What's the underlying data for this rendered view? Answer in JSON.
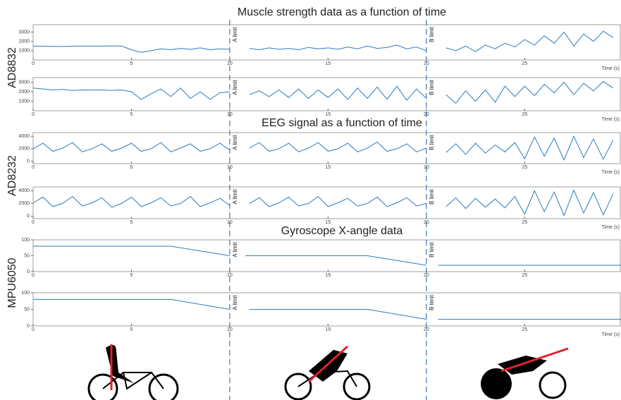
{
  "chart_data": [
    {
      "type": "line",
      "title": "Muscle strength data as a function of time",
      "ylabel": "AD8832",
      "xlabel": "Time (s)",
      "annotations": [
        "A limit",
        "B limit"
      ],
      "vlines": [
        10,
        20
      ],
      "color": "#2a7bc1",
      "xlim": [
        0,
        29.9
      ],
      "xticks": [
        0,
        5,
        10,
        15,
        20,
        25
      ],
      "ylim": [
        0,
        3800
      ],
      "yticks": [
        1000,
        2000,
        3000
      ],
      "x": [
        0,
        0.5,
        1,
        1.5,
        2,
        2.5,
        3,
        3.5,
        4,
        4.5,
        5,
        5.5,
        6,
        6.5,
        7,
        7.5,
        8,
        8.5,
        9,
        9.5,
        10,
        10.5,
        11,
        11.5,
        12,
        12.5,
        13,
        13.5,
        14,
        14.5,
        15,
        15.5,
        16,
        16.5,
        17,
        17.5,
        18,
        18.5,
        19,
        19.5,
        20,
        20.5,
        21,
        21.5,
        22,
        22.5,
        23,
        23.5,
        24,
        24.5,
        25,
        25.5,
        26,
        26.5,
        27,
        27.5,
        28,
        28.5,
        29,
        29.5
      ],
      "values": [
        1500,
        1480,
        1470,
        1450,
        1480,
        1500,
        1490,
        1500,
        1510,
        1500,
        1100,
        820,
        1000,
        1200,
        1100,
        1250,
        1150,
        1300,
        1100,
        1200,
        1150,
        null,
        1250,
        1100,
        1300,
        1150,
        1250,
        1100,
        1350,
        1200,
        1300,
        1150,
        1400,
        1200,
        1500,
        1250,
        1350,
        1600,
        1200,
        1400,
        1000,
        null,
        1300,
        1000,
        1500,
        900,
        1600,
        1200,
        1800,
        1400,
        2200,
        1600,
        2600,
        1800,
        3000,
        1500,
        2800,
        2000,
        3100,
        2400
      ]
    },
    {
      "type": "line",
      "xlabel": "Time (s)",
      "annotations": [
        "A limit",
        "B limit"
      ],
      "color": "#2a7bc1",
      "xlim": [
        0,
        29.9
      ],
      "xticks": [
        0,
        5,
        10,
        15,
        20,
        25
      ],
      "ylim": [
        0,
        3500
      ],
      "yticks": [
        1000,
        2000,
        3000
      ],
      "x": [
        0,
        0.5,
        1,
        1.5,
        2,
        2.5,
        3,
        3.5,
        4,
        4.5,
        5,
        5.5,
        6,
        6.5,
        7,
        7.5,
        8,
        8.5,
        9,
        9.5,
        10,
        10.5,
        11,
        11.5,
        12,
        12.5,
        13,
        13.5,
        14,
        14.5,
        15,
        15.5,
        16,
        16.5,
        17,
        17.5,
        18,
        18.5,
        19,
        19.5,
        20,
        20.5,
        21,
        21.5,
        22,
        22.5,
        23,
        23.5,
        24,
        24.5,
        25,
        25.5,
        26,
        26.5,
        27,
        27.5,
        28,
        28.5,
        29,
        29.5
      ],
      "values": [
        2400,
        2300,
        2200,
        2250,
        2150,
        2200,
        2180,
        2200,
        2150,
        2200,
        2000,
        1200,
        1800,
        2300,
        1500,
        2400,
        1300,
        2000,
        1200,
        1900,
        2000,
        null,
        1700,
        2100,
        1500,
        2200,
        1400,
        2300,
        1300,
        2200,
        1400,
        2300,
        1200,
        2400,
        1300,
        2500,
        1200,
        2600,
        1100,
        2300,
        1300,
        null,
        1700,
        800,
        2100,
        1000,
        2200,
        900,
        2600,
        1500,
        2600,
        1600,
        2800,
        1900,
        3000,
        1700,
        2900,
        2100,
        3100,
        2400
      ]
    },
    {
      "type": "line",
      "title": "EEG signal as a function of time",
      "ylabel": "AD8232",
      "xlabel": "Time (s)",
      "annotations": [
        "A limit",
        "B limit"
      ],
      "color": "#2a7bc1",
      "xlim": [
        0,
        29.9
      ],
      "xticks": [
        0,
        5,
        10,
        15,
        20,
        25
      ],
      "ylim": [
        -400,
        4600
      ],
      "yticks": [
        0,
        2000,
        4000
      ],
      "x": [
        0,
        0.5,
        1,
        1.5,
        2,
        2.5,
        3,
        3.5,
        4,
        4.5,
        5,
        5.5,
        6,
        6.5,
        7,
        7.5,
        8,
        8.5,
        9,
        9.5,
        10,
        10.5,
        11,
        11.5,
        12,
        12.5,
        13,
        13.5,
        14,
        14.5,
        15,
        15.5,
        16,
        16.5,
        17,
        17.5,
        18,
        18.5,
        19,
        19.5,
        20,
        20.5,
        21,
        21.5,
        22,
        22.5,
        23,
        23.5,
        24,
        24.5,
        25,
        25.5,
        26,
        26.5,
        27,
        27.5,
        28,
        28.5,
        29,
        29.5
      ],
      "values": [
        2000,
        2900,
        1600,
        2100,
        3000,
        1500,
        2000,
        2800,
        1600,
        2100,
        2900,
        1600,
        2000,
        3000,
        1500,
        2100,
        2800,
        1600,
        2000,
        2900,
        1800,
        null,
        2100,
        3000,
        1600,
        2000,
        2900,
        1500,
        2100,
        3000,
        1600,
        2000,
        2900,
        1500,
        2100,
        3100,
        1600,
        2000,
        2800,
        1500,
        2100,
        null,
        1400,
        2800,
        1100,
        2900,
        1300,
        2600,
        1500,
        3000,
        400,
        3900,
        800,
        3700,
        200,
        4000,
        600,
        3600,
        300,
        3400
      ]
    },
    {
      "type": "line",
      "xlabel": "Time (s)",
      "annotations": [
        "A limit",
        "B limit"
      ],
      "color": "#2a7bc1",
      "xlim": [
        0,
        29.9
      ],
      "xticks": [
        0,
        5,
        10,
        15,
        20,
        25
      ],
      "ylim": [
        -400,
        4600
      ],
      "yticks": [
        0,
        2000,
        4000
      ],
      "x": [
        0,
        0.5,
        1,
        1.5,
        2,
        2.5,
        3,
        3.5,
        4,
        4.5,
        5,
        5.5,
        6,
        6.5,
        7,
        7.5,
        8,
        8.5,
        9,
        9.5,
        10,
        10.5,
        11,
        11.5,
        12,
        12.5,
        13,
        13.5,
        14,
        14.5,
        15,
        15.5,
        16,
        16.5,
        17,
        17.5,
        18,
        18.5,
        19,
        19.5,
        20,
        20.5,
        21,
        21.5,
        22,
        22.5,
        23,
        23.5,
        24,
        24.5,
        25,
        25.5,
        26,
        26.5,
        27,
        27.5,
        28,
        28.5,
        29,
        29.5
      ],
      "values": [
        2100,
        3000,
        1500,
        2000,
        3100,
        1600,
        2100,
        2900,
        1400,
        2000,
        3000,
        1500,
        2100,
        2900,
        1600,
        2000,
        3100,
        1500,
        2100,
        2800,
        1700,
        null,
        2000,
        2900,
        1500,
        2100,
        3000,
        1600,
        2000,
        3100,
        1500,
        2100,
        2800,
        1600,
        2000,
        3000,
        1500,
        2100,
        2900,
        1600,
        2000,
        null,
        1500,
        2900,
        1200,
        2800,
        1400,
        2700,
        1300,
        3100,
        300,
        4000,
        700,
        3800,
        100,
        4100,
        500,
        3700,
        200,
        3500
      ]
    },
    {
      "type": "line",
      "title": "Gyroscope X-angle data",
      "ylabel": "MPU6050",
      "annotations": [
        "A limit",
        "B limit"
      ],
      "color": "#2a7bc1",
      "xlim": [
        0,
        29.9
      ],
      "xticks": [
        0,
        5,
        10,
        15,
        20,
        25
      ],
      "ylim": [
        0,
        100
      ],
      "yticks": [
        0,
        50,
        100
      ],
      "x": [
        0,
        7,
        10,
        10.5,
        10.8,
        17,
        20,
        20.3,
        20.6,
        29.9
      ],
      "values": [
        80,
        80,
        50,
        null,
        50,
        50,
        20,
        null,
        20,
        20
      ]
    },
    {
      "type": "line",
      "xlabel": "Time (s)",
      "annotations": [
        "A limit",
        "B limit"
      ],
      "color": "#2a7bc1",
      "xlim": [
        0,
        29.9
      ],
      "xticks": [
        0,
        5,
        10,
        15,
        20,
        25
      ],
      "ylim": [
        0,
        100
      ],
      "yticks": [
        0,
        50,
        100
      ],
      "x": [
        0,
        7,
        10,
        10.5,
        11,
        17,
        20,
        20.3,
        20.6,
        29.9
      ],
      "values": [
        80,
        80,
        50,
        null,
        50,
        50,
        20,
        null,
        20,
        20
      ]
    }
  ]
}
